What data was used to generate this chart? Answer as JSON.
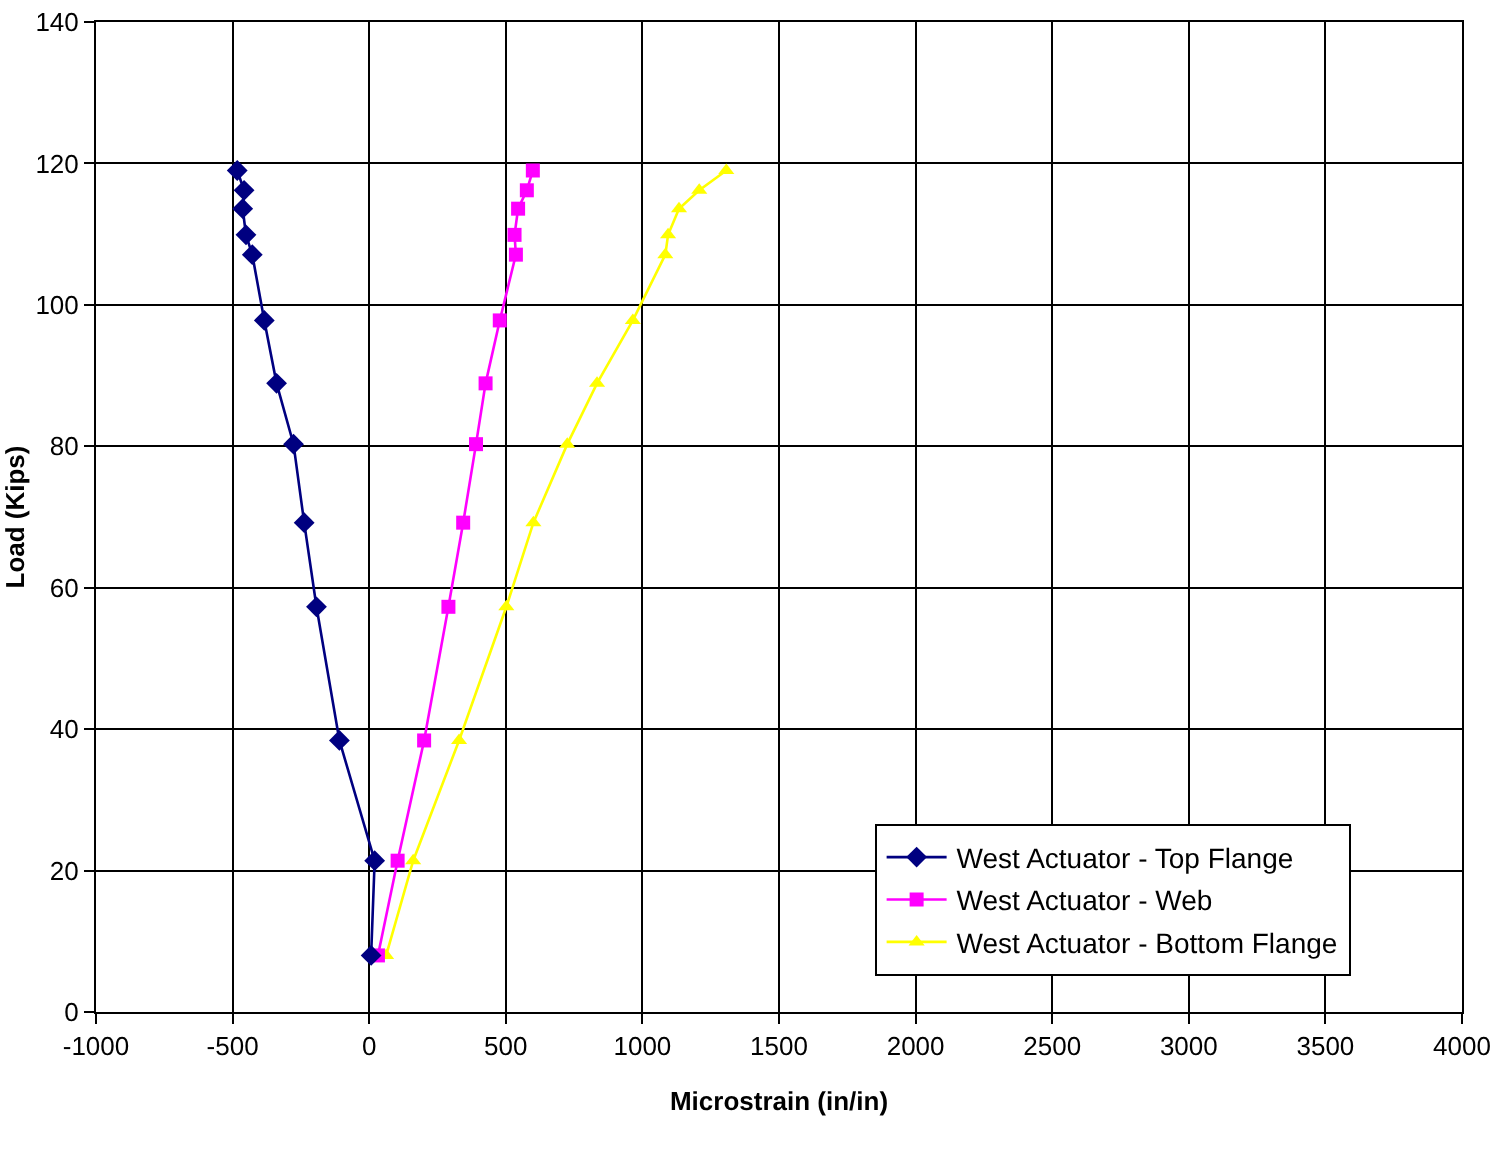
{
  "chart_data": {
    "type": "line",
    "xlabel": "Microstrain (in/in)",
    "ylabel": "Load (Kips)",
    "xlim": [
      -1000,
      4000
    ],
    "xticks": [
      -1000,
      -500,
      0,
      500,
      1000,
      1500,
      2000,
      2500,
      3000,
      3500,
      4000
    ],
    "ylim": [
      0,
      140
    ],
    "yticks": [
      0,
      20,
      40,
      60,
      80,
      100,
      120,
      140
    ],
    "grid": true,
    "legend": "bottom right",
    "series": [
      {
        "name": "West Actuator - Top Flange",
        "color": "#000080",
        "marker": "diamond",
        "x": [
          7,
          20,
          -109,
          -193,
          -238,
          -277,
          -339,
          -384,
          -428,
          -451,
          -463,
          -458,
          -483
        ],
        "values": [
          8,
          21.4,
          38.4,
          57.3,
          69.2,
          80.3,
          88.9,
          97.8,
          107.1,
          109.9,
          113.6,
          116.2,
          119
        ]
      },
      {
        "name": "West Actuator - Web",
        "color": "#ff00ff",
        "marker": "square",
        "x": [
          32,
          104,
          201,
          290,
          344,
          391,
          426,
          478,
          537,
          532,
          545,
          577,
          599
        ],
        "values": [
          8,
          21.4,
          38.4,
          57.3,
          69.2,
          80.3,
          88.9,
          97.8,
          107.1,
          109.9,
          113.6,
          116.2,
          119
        ]
      },
      {
        "name": "West Actuator - Bottom Flange",
        "color": "#ffff00",
        "marker": "triangle",
        "x": [
          62,
          161,
          329,
          502,
          601,
          725,
          834,
          965,
          1084,
          1094,
          1134,
          1208,
          1307
        ],
        "values": [
          8,
          21.4,
          38.4,
          57.3,
          69.2,
          80.3,
          88.9,
          97.8,
          107.1,
          109.9,
          113.6,
          116.2,
          119
        ]
      }
    ]
  }
}
